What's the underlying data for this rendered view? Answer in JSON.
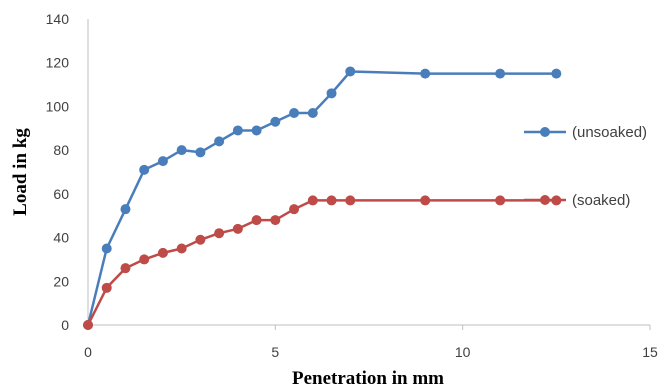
{
  "chart_data": {
    "type": "line",
    "title": "",
    "xlabel": "Penetration in mm",
    "ylabel": "Load in kg",
    "xlim": [
      0,
      15
    ],
    "ylim": [
      0,
      140
    ],
    "xticks": [
      "0",
      "5",
      "10",
      "15"
    ],
    "yticks": [
      "0",
      "20",
      "40",
      "60",
      "80",
      "100",
      "120",
      "140"
    ],
    "grid": false,
    "legend": "right",
    "series": [
      {
        "name": "(unsoaked)",
        "color": "#4a7ebb",
        "x": [
          0,
          0.5,
          1,
          1.5,
          2,
          2.5,
          3,
          3.5,
          4,
          4.5,
          5,
          5.5,
          6,
          6.5,
          7,
          9,
          11,
          12.5
        ],
        "y": [
          0,
          35,
          53,
          71,
          75,
          80,
          79,
          84,
          89,
          89,
          93,
          97,
          97,
          106,
          116,
          115,
          115,
          115
        ]
      },
      {
        "name": "(soaked)",
        "color": "#be4b48",
        "x": [
          0,
          0.5,
          1,
          1.5,
          2,
          2.5,
          3,
          3.5,
          4,
          4.5,
          5,
          5.5,
          6,
          6.5,
          7,
          9,
          11,
          12.5
        ],
        "y": [
          0,
          17,
          26,
          30,
          33,
          35,
          39,
          42,
          44,
          48,
          48,
          53,
          57,
          57,
          57,
          57,
          57,
          57
        ]
      }
    ]
  }
}
